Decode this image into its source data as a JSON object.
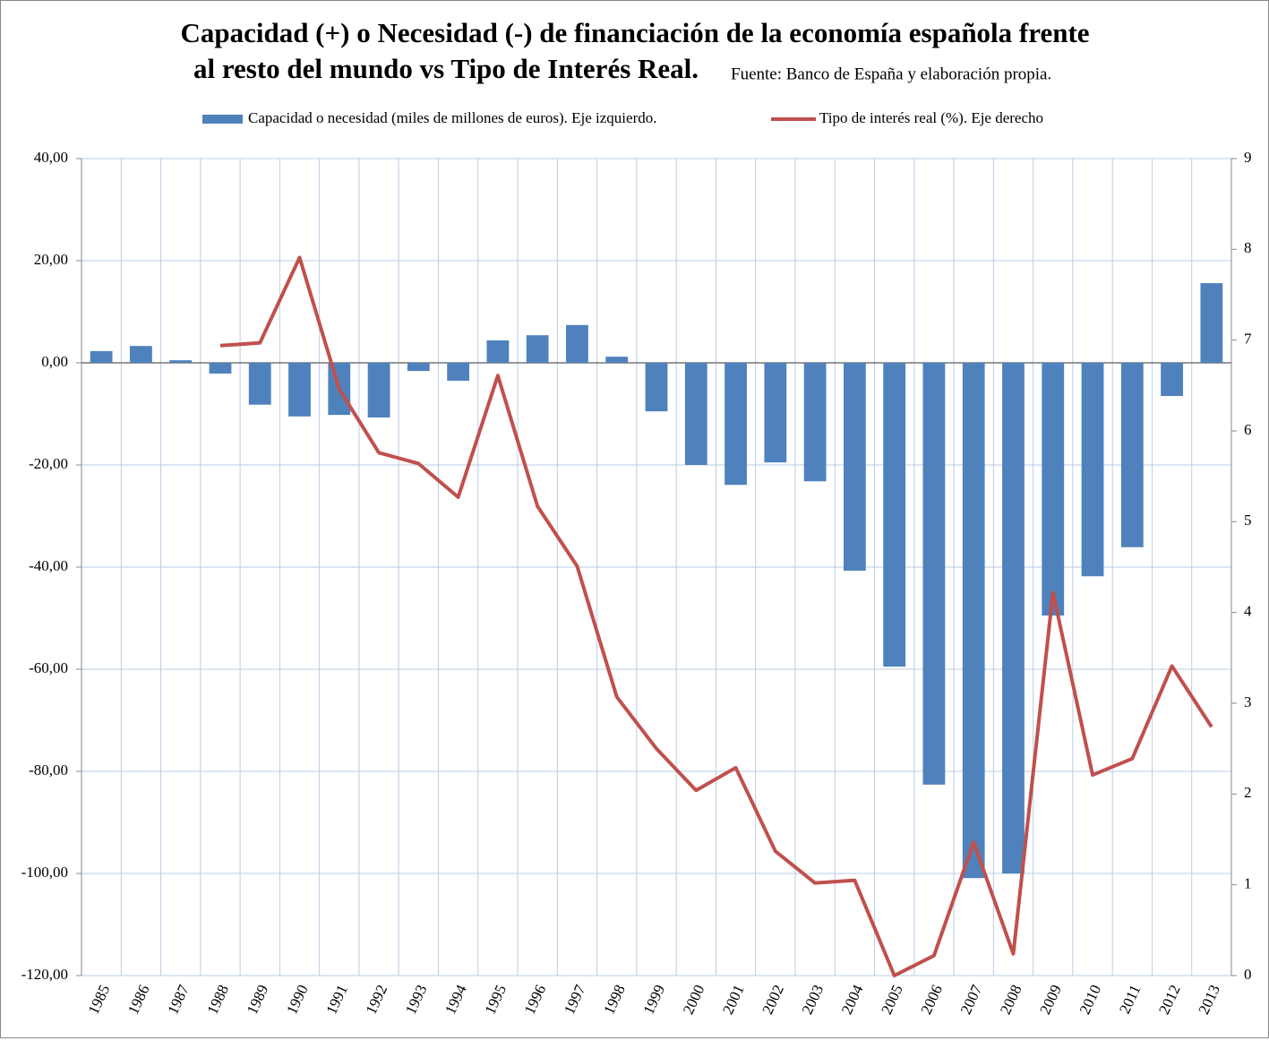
{
  "chart_data": {
    "type": "bar_line",
    "title": [
      "Capacidad (+) o Necesidad (-) de financiación de la economía española frente",
      "al resto del mundo vs Tipo de Interés Real."
    ],
    "subtitle": "Fuente: Banco de España y elaboración propia.",
    "categories": [
      "1985",
      "1986",
      "1987",
      "1988",
      "1989",
      "1990",
      "1991",
      "1992",
      "1993",
      "1994",
      "1995",
      "1996",
      "1997",
      "1998",
      "1999",
      "2000",
      "2001",
      "2002",
      "2003",
      "2004",
      "2005",
      "2006",
      "2007",
      "2008",
      "2009",
      "2010",
      "2011",
      "2012",
      "2013"
    ],
    "series": [
      {
        "name": "Capacidad o necesidad (miles de millones de euros). Eje izquierdo.",
        "type": "bar",
        "color": "#4f81bd",
        "values": [
          2.3,
          3.3,
          0.5,
          -2.1,
          -8.2,
          -10.5,
          -10.2,
          -10.7,
          -1.6,
          -3.5,
          4.4,
          5.4,
          7.4,
          1.2,
          -9.5,
          -20.0,
          -23.9,
          -19.5,
          -23.2,
          -40.7,
          -59.5,
          -82.6,
          -100.9,
          -100.0,
          -49.5,
          -41.8,
          -36.1,
          -6.5,
          15.6
        ]
      },
      {
        "name": "Tipo de interés real (%). Eje derecho",
        "type": "line",
        "axis": "y2",
        "color": "#c0504d",
        "values": [
          null,
          null,
          null,
          6.94,
          6.97,
          7.91,
          6.46,
          5.76,
          5.64,
          5.27,
          6.61,
          5.17,
          4.51,
          3.07,
          2.5,
          2.04,
          2.29,
          1.37,
          1.02,
          1.05,
          0.0,
          0.22,
          1.47,
          0.24,
          4.22,
          2.21,
          2.39,
          3.41,
          2.74
        ]
      }
    ],
    "ylim": [
      -120,
      40
    ],
    "yticks": [
      {
        "value": 40,
        "label": "40,00"
      },
      {
        "value": 20,
        "label": "20,00"
      },
      {
        "value": 0,
        "label": "0,00"
      },
      {
        "value": -20,
        "label": "-20,00"
      },
      {
        "value": -40,
        "label": "-40,00"
      },
      {
        "value": -60,
        "label": "-60,00"
      },
      {
        "value": -80,
        "label": "-80,00"
      },
      {
        "value": -100,
        "label": "-100,00"
      },
      {
        "value": -120,
        "label": "-120,00"
      }
    ],
    "y2lim": [
      0,
      9
    ],
    "y2ticks": [
      0,
      1,
      2,
      3,
      4,
      5,
      6,
      7,
      8,
      9
    ],
    "grid": true,
    "legend": "top"
  }
}
